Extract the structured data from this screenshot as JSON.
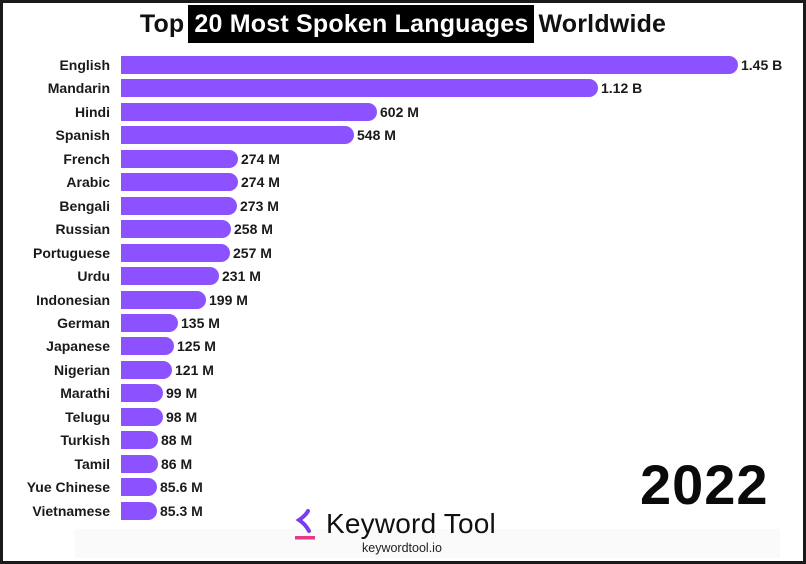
{
  "title": {
    "prefix": "Top",
    "highlight": "20 Most Spoken Languages",
    "suffix": "Worldwide"
  },
  "year": "2022",
  "brand": {
    "name": "Keyword Tool",
    "url": "keywordtool.io",
    "mark_color": "#7a3cf0",
    "underline_color": "#e8388a"
  },
  "colors": {
    "bar": "#8c52ff",
    "text": "#1a1a1a",
    "title_highlight_bg": "#000000",
    "frame": "#1a1a1a"
  },
  "chart_data": {
    "type": "bar",
    "orientation": "horizontal",
    "title": "Top 20 Most Spoken Languages Worldwide",
    "subtitle": "2022",
    "xlabel": "",
    "ylabel": "",
    "grid": false,
    "legend": null,
    "unit": "speakers (millions)",
    "categories": [
      "English",
      "Mandarin",
      "Hindi",
      "Spanish",
      "French",
      "Arabic",
      "Bengali",
      "Russian",
      "Portuguese",
      "Urdu",
      "Indonesian",
      "German",
      "Japanese",
      "Nigerian",
      "Marathi",
      "Telugu",
      "Turkish",
      "Tamil",
      "Yue Chinese",
      "Vietnamese"
    ],
    "values": [
      1450,
      1120,
      602,
      548,
      274,
      274,
      273,
      258,
      257,
      231,
      199,
      135,
      125,
      121,
      99,
      98,
      88,
      86,
      85.6,
      85.3
    ],
    "value_labels": [
      "1.45 B",
      "1.12 B",
      "602 M",
      "548 M",
      "274 M",
      "274 M",
      "273 M",
      "258 M",
      "257 M",
      "231 M",
      "199 M",
      "135 M",
      "125 M",
      "121 M",
      "99 M",
      "98 M",
      "88 M",
      "86 M",
      "85.6 M",
      "85.3 M"
    ]
  }
}
